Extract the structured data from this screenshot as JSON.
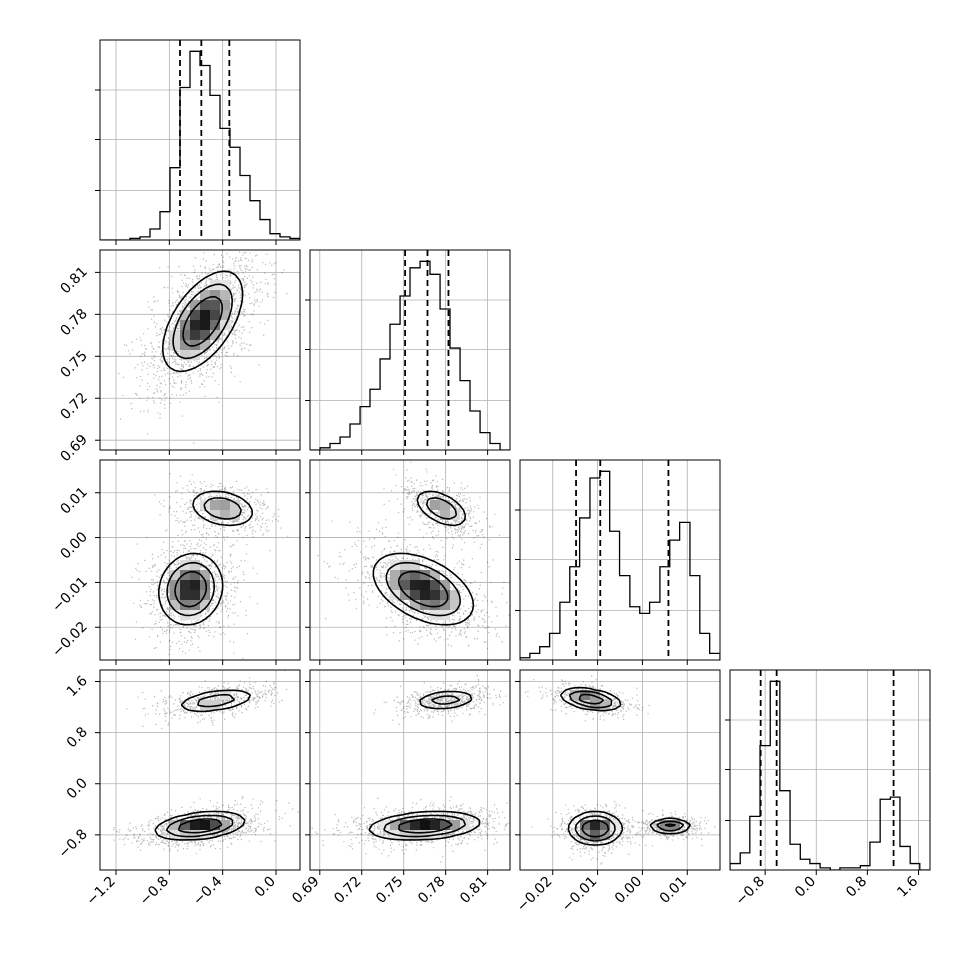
{
  "chart_data": {
    "type": "corner",
    "grid": true,
    "parameters": [
      {
        "range": [
          -1.32,
          0.18
        ],
        "ticks": [
          -1.2,
          -0.8,
          -0.4,
          0.0
        ],
        "tick_labels": [
          "−1.2",
          "−0.8",
          "−0.4",
          "0.0"
        ]
      },
      {
        "range": [
          0.683,
          0.826
        ],
        "ticks": [
          0.69,
          0.72,
          0.75,
          0.78,
          0.81
        ],
        "tick_labels": [
          "0.69",
          "0.72",
          "0.75",
          "0.78",
          "0.81"
        ]
      },
      {
        "range": [
          -0.0273,
          0.0173
        ],
        "ticks": [
          -0.02,
          -0.01,
          0.0,
          0.01
        ],
        "tick_labels": [
          "−0.02",
          "−0.01",
          "0.00",
          "0.01"
        ]
      },
      {
        "range": [
          -1.35,
          1.78
        ],
        "ticks": [
          -0.8,
          0.0,
          0.8,
          1.6
        ],
        "tick_labels": [
          "−0.8",
          "0.0",
          "0.8",
          "1.6"
        ]
      }
    ],
    "quantiles": [
      [
        -0.72,
        -0.56,
        -0.35
      ],
      [
        0.751,
        0.767,
        0.782
      ],
      [
        -0.0148,
        -0.0094,
        0.0058
      ],
      [
        -0.87,
        -0.62,
        1.21
      ]
    ],
    "histograms": [
      {
        "bins": [
          -1.32,
          -1.245,
          -1.17,
          -1.095,
          -1.02,
          -0.945,
          -0.87,
          -0.795,
          -0.72,
          -0.645,
          -0.57,
          -0.495,
          -0.42,
          -0.345,
          -0.27,
          -0.195,
          -0.12,
          -0.045,
          0.03,
          0.105,
          0.18
        ],
        "counts": [
          0,
          0,
          0,
          1,
          2,
          7,
          18,
          46,
          97,
          120,
          111,
          92,
          71,
          59,
          41,
          25,
          13,
          4,
          2,
          1
        ]
      },
      {
        "bins": [
          0.683,
          0.6902,
          0.6973,
          0.7045,
          0.7116,
          0.7188,
          0.7259,
          0.7331,
          0.7402,
          0.7474,
          0.7545,
          0.7617,
          0.7688,
          0.776,
          0.7831,
          0.7903,
          0.7974,
          0.8046,
          0.8117,
          0.8189,
          0.826
        ],
        "counts": [
          0,
          1,
          3,
          6,
          12,
          20,
          28,
          42,
          58,
          71,
          84,
          87,
          81,
          65,
          47,
          32,
          18,
          8,
          3,
          0
        ]
      },
      {
        "bins": [
          -0.0273,
          -0.0251,
          -0.0229,
          -0.0207,
          -0.0184,
          -0.0162,
          -0.014,
          -0.0117,
          -0.0095,
          -0.0073,
          -0.0051,
          -0.0028,
          -0.0006,
          0.0016,
          0.0039,
          0.0061,
          0.0083,
          0.0106,
          0.0128,
          0.015,
          0.0173
        ],
        "counts": [
          1,
          3,
          6,
          12,
          26,
          42,
          64,
          82,
          85,
          58,
          38,
          24,
          21,
          26,
          42,
          54,
          62,
          38,
          12,
          3
        ]
      },
      {
        "bins": [
          -1.35,
          -1.19,
          -1.04,
          -0.88,
          -0.72,
          -0.57,
          -0.41,
          -0.25,
          -0.1,
          0.06,
          0.22,
          0.37,
          0.53,
          0.69,
          0.84,
          1.0,
          1.16,
          1.31,
          1.47,
          1.62,
          1.78
        ],
        "counts": [
          3,
          8,
          25,
          58,
          88,
          37,
          12,
          5,
          3,
          1,
          0,
          1,
          1,
          2,
          13,
          33,
          34,
          11,
          3,
          0
        ]
      }
    ],
    "joint_modes": [
      {
        "x": 0,
        "y": 1,
        "modes": [
          {
            "mu": [
              -0.55,
              0.775
            ],
            "sd": [
              0.15,
              0.018
            ],
            "rho": 0.55,
            "w": 1
          }
        ]
      },
      {
        "x": 0,
        "y": 2,
        "modes": [
          {
            "mu": [
              -0.64,
              -0.0115
            ],
            "sd": [
              0.12,
              0.004
            ],
            "rho": 0.1,
            "w": 0.63
          },
          {
            "mu": [
              -0.4,
              0.0065
            ],
            "sd": [
              0.13,
              0.0022
            ],
            "rho": -0.25,
            "w": 0.37
          }
        ]
      },
      {
        "x": 0,
        "y": 3,
        "modes": [
          {
            "mu": [
              -0.57,
              -0.66
            ],
            "sd": [
              0.17,
              0.11
            ],
            "rho": 0.35,
            "w": 0.67
          },
          {
            "mu": [
              -0.45,
              1.3
            ],
            "sd": [
              0.16,
              0.1
            ],
            "rho": 0.45,
            "w": 0.33
          }
        ]
      },
      {
        "x": 1,
        "y": 2,
        "modes": [
          {
            "mu": [
              0.764,
              -0.0115
            ],
            "sd": [
              0.018,
              0.004
            ],
            "rho": -0.45,
            "w": 0.63
          },
          {
            "mu": [
              0.777,
              0.0065
            ],
            "sd": [
              0.01,
              0.0022
            ],
            "rho": -0.5,
            "w": 0.37
          }
        ]
      },
      {
        "x": 1,
        "y": 3,
        "modes": [
          {
            "mu": [
              0.765,
              -0.66
            ],
            "sd": [
              0.02,
              0.11
            ],
            "rho": 0.25,
            "w": 0.67
          },
          {
            "mu": [
              0.78,
              1.31
            ],
            "sd": [
              0.012,
              0.08
            ],
            "rho": 0.25,
            "w": 0.33
          }
        ]
      },
      {
        "x": 2,
        "y": 3,
        "modes": [
          {
            "mu": [
              -0.0105,
              -0.7
            ],
            "sd": [
              0.003,
              0.13
            ],
            "rho": 0.0,
            "w": 0.4
          },
          {
            "mu": [
              0.0062,
              -0.66
            ],
            "sd": [
              0.0025,
              0.06
            ],
            "rho": 0.0,
            "w": 0.28
          },
          {
            "mu": [
              -0.0115,
              1.32
            ],
            "sd": [
              0.0035,
              0.09
            ],
            "rho": -0.4,
            "w": 0.32
          }
        ]
      }
    ]
  }
}
